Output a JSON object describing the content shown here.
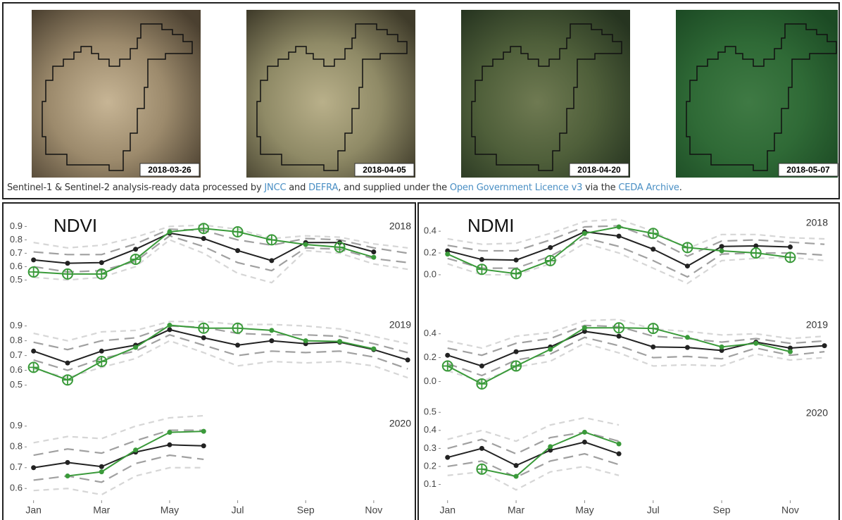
{
  "images": [
    {
      "date": "2018-03-26"
    },
    {
      "date": "2018-04-05"
    },
    {
      "date": "2018-04-20"
    },
    {
      "date": "2018-05-07"
    }
  ],
  "caption": {
    "parts": [
      "Sentinel-1 & Sentinel-2 analysis-ready data processed by ",
      "JNCC",
      " and ",
      "DEFRA",
      ", and supplied under the ",
      "Open Government Licence v3",
      " via the ",
      "CEDA Archive",
      "."
    ]
  },
  "chart_data": [
    {
      "type": "line",
      "title": "NDVI",
      "subtitle": "2018",
      "x": [
        1,
        2,
        3,
        4,
        5,
        6,
        7,
        8,
        9,
        10,
        11,
        12
      ],
      "xlim": [
        0.8,
        12.1
      ],
      "ylim": [
        0.46,
        0.96
      ],
      "yticks": [
        0.5,
        0.6,
        0.7,
        0.8,
        0.9
      ],
      "series": [
        {
          "color": "#d6d6d6",
          "dash": "8 6",
          "values": [
            0.78,
            0.74,
            0.76,
            0.82,
            0.9,
            0.91,
            0.88,
            0.81,
            0.83,
            0.82,
            0.77,
            0.74
          ]
        },
        {
          "color": "#d6d6d6",
          "dash": "8 6",
          "values": [
            0.52,
            0.5,
            0.52,
            0.6,
            0.8,
            0.7,
            0.55,
            0.48,
            0.72,
            0.7,
            0.62,
            0.58
          ]
        },
        {
          "color": "#a0a0a0",
          "dash": "14 8",
          "values": [
            0.71,
            0.69,
            0.69,
            0.77,
            0.88,
            0.87,
            0.8,
            0.76,
            0.81,
            0.8,
            0.74,
            0.7
          ]
        },
        {
          "color": "#a0a0a0",
          "dash": "14 8",
          "values": [
            0.6,
            0.56,
            0.57,
            0.64,
            0.83,
            0.75,
            0.63,
            0.57,
            0.74,
            0.73,
            0.66,
            0.63
          ]
        },
        {
          "color": "#222222",
          "marker": "dot",
          "values": [
            0.65,
            0.625,
            0.63,
            0.73,
            0.85,
            0.81,
            0.72,
            0.645,
            0.78,
            0.78,
            0.71,
            null
          ]
        },
        {
          "color": "#3a9a3a",
          "markers": [
            "circle-plus",
            "circle-plus",
            "circle-plus",
            "circle-plus",
            "dot",
            "circle-plus",
            "circle-plus",
            "circle-plus",
            "dot",
            "circle-plus",
            "dot",
            "dot"
          ],
          "values": [
            0.56,
            0.545,
            0.545,
            0.655,
            0.86,
            0.885,
            0.86,
            0.8,
            0.765,
            0.745,
            0.67,
            null
          ]
        }
      ]
    },
    {
      "type": "line",
      "subtitle": "2019",
      "x": [
        1,
        2,
        3,
        4,
        5,
        6,
        7,
        8,
        9,
        10,
        11,
        12
      ],
      "xlim": [
        0.8,
        12.1
      ],
      "ylim": [
        0.46,
        0.96
      ],
      "yticks": [
        0.5,
        0.6,
        0.7,
        0.8,
        0.9
      ],
      "series": [
        {
          "color": "#d6d6d6",
          "dash": "8 6",
          "values": [
            0.85,
            0.8,
            0.86,
            0.87,
            0.93,
            0.93,
            0.91,
            0.91,
            0.9,
            0.88,
            0.83,
            0.78
          ]
        },
        {
          "color": "#d6d6d6",
          "dash": "8 6",
          "values": [
            0.61,
            0.55,
            0.62,
            0.68,
            0.8,
            0.72,
            0.63,
            0.66,
            0.65,
            0.66,
            0.63,
            0.55
          ]
        },
        {
          "color": "#a0a0a0",
          "dash": "14 8",
          "values": [
            0.79,
            0.74,
            0.8,
            0.82,
            0.9,
            0.89,
            0.85,
            0.84,
            0.84,
            0.83,
            0.78,
            0.72
          ]
        },
        {
          "color": "#a0a0a0",
          "dash": "14 8",
          "values": [
            0.67,
            0.6,
            0.68,
            0.73,
            0.84,
            0.77,
            0.7,
            0.73,
            0.72,
            0.73,
            0.69,
            0.61
          ]
        },
        {
          "color": "#222222",
          "marker": "dot",
          "values": [
            0.73,
            0.65,
            0.73,
            0.77,
            0.875,
            0.82,
            0.77,
            0.8,
            0.78,
            0.79,
            0.74,
            0.67
          ]
        },
        {
          "color": "#3a9a3a",
          "markers": [
            "circle-plus",
            "circle-plus",
            "circle-plus",
            "dot",
            "dot",
            "circle-plus",
            "circle-plus",
            "dot",
            "dot",
            "dot",
            "dot",
            "dot"
          ],
          "values": [
            0.62,
            0.535,
            0.66,
            0.755,
            0.905,
            0.885,
            0.885,
            0.87,
            0.8,
            0.795,
            0.745,
            null
          ]
        }
      ]
    },
    {
      "type": "line",
      "subtitle": "2020",
      "x": [
        1,
        2,
        3,
        4,
        5,
        6
      ],
      "xlim": [
        0.8,
        12.1
      ],
      "ylim": [
        0.55,
        0.95
      ],
      "yticks": [
        0.6,
        0.7,
        0.8,
        0.9
      ],
      "xticks": [
        {
          "value": 1,
          "label": "Jan"
        },
        {
          "value": 3,
          "label": "Mar"
        },
        {
          "value": 5,
          "label": "May"
        },
        {
          "value": 7,
          "label": "Jul"
        },
        {
          "value": 9,
          "label": "Sep"
        },
        {
          "value": 11,
          "label": "Nov"
        }
      ],
      "series": [
        {
          "color": "#d6d6d6",
          "dash": "8 6",
          "values": [
            0.82,
            0.85,
            0.84,
            0.9,
            0.94,
            0.95
          ]
        },
        {
          "color": "#d6d6d6",
          "dash": "8 6",
          "values": [
            0.59,
            0.6,
            0.57,
            0.66,
            0.7,
            0.7
          ]
        },
        {
          "color": "#a0a0a0",
          "dash": "14 8",
          "values": [
            0.76,
            0.79,
            0.77,
            0.83,
            0.88,
            0.88
          ]
        },
        {
          "color": "#a0a0a0",
          "dash": "14 8",
          "values": [
            0.64,
            0.66,
            0.63,
            0.72,
            0.76,
            0.74
          ]
        },
        {
          "color": "#222222",
          "marker": "dot",
          "values": [
            0.7,
            0.725,
            0.705,
            0.775,
            0.81,
            0.805
          ]
        },
        {
          "color": "#3a9a3a",
          "markers": [
            "dot",
            "dot",
            "dot",
            "dot",
            "dot",
            "dot"
          ],
          "values": [
            null,
            0.66,
            0.68,
            0.785,
            0.87,
            0.875
          ]
        }
      ]
    },
    {
      "type": "line",
      "title": "NDMI",
      "subtitle": "2018",
      "x": [
        1,
        2,
        3,
        4,
        5,
        6,
        7,
        8,
        9,
        10,
        11,
        12
      ],
      "xlim": [
        0.8,
        12.1
      ],
      "ylim": [
        -0.13,
        0.55
      ],
      "yticks": [
        {
          "value": 0,
          "label": "0.0"
        },
        0.2,
        0.4
      ],
      "series": [
        {
          "color": "#d6d6d6",
          "dash": "8 6",
          "values": [
            0.33,
            0.28,
            0.29,
            0.38,
            0.49,
            0.51,
            0.4,
            0.24,
            0.37,
            0.37,
            0.34,
            0.33
          ]
        },
        {
          "color": "#d6d6d6",
          "dash": "8 6",
          "values": [
            0.1,
            0.0,
            0.0,
            0.1,
            0.29,
            0.2,
            0.06,
            -0.08,
            0.13,
            0.15,
            0.16,
            0.13
          ]
        },
        {
          "color": "#a0a0a0",
          "dash": "14 8",
          "values": [
            0.27,
            0.22,
            0.22,
            0.32,
            0.44,
            0.45,
            0.33,
            0.17,
            0.31,
            0.32,
            0.3,
            0.28
          ]
        },
        {
          "color": "#a0a0a0",
          "dash": "14 8",
          "values": [
            0.15,
            0.06,
            0.06,
            0.17,
            0.34,
            0.26,
            0.13,
            -0.02,
            0.19,
            0.2,
            0.2,
            0.18
          ]
        },
        {
          "color": "#222222",
          "marker": "dot",
          "values": [
            0.22,
            0.14,
            0.135,
            0.25,
            0.395,
            0.355,
            0.235,
            0.08,
            0.26,
            0.265,
            0.255,
            null
          ]
        },
        {
          "color": "#3a9a3a",
          "markers": [
            "dot",
            "circle-plus",
            "circle-plus",
            "circle-plus",
            "dot",
            "dot",
            "circle-plus",
            "circle-plus",
            "dot",
            "circle-plus",
            "circle-plus",
            "dot"
          ],
          "values": [
            0.19,
            0.05,
            0.01,
            0.13,
            0.38,
            0.44,
            0.38,
            0.25,
            0.22,
            0.2,
            0.16,
            null
          ]
        }
      ]
    },
    {
      "type": "line",
      "subtitle": "2019",
      "x": [
        1,
        2,
        3,
        4,
        5,
        6,
        7,
        8,
        9,
        10,
        11,
        12
      ],
      "xlim": [
        0.8,
        12.1
      ],
      "ylim": [
        -0.08,
        0.54
      ],
      "yticks": [
        {
          "value": 0,
          "label": "0.0"
        },
        0.2,
        0.4
      ],
      "series": [
        {
          "color": "#d6d6d6",
          "dash": "8 6",
          "values": [
            0.34,
            0.28,
            0.38,
            0.41,
            0.51,
            0.52,
            0.44,
            0.42,
            0.39,
            0.4,
            0.36,
            0.38
          ]
        },
        {
          "color": "#d6d6d6",
          "dash": "8 6",
          "values": [
            0.09,
            0.0,
            0.12,
            0.17,
            0.32,
            0.24,
            0.13,
            0.14,
            0.13,
            0.23,
            0.18,
            0.2
          ]
        },
        {
          "color": "#a0a0a0",
          "dash": "14 8",
          "values": [
            0.28,
            0.22,
            0.32,
            0.36,
            0.47,
            0.46,
            0.38,
            0.36,
            0.33,
            0.36,
            0.32,
            0.34
          ]
        },
        {
          "color": "#a0a0a0",
          "dash": "14 8",
          "values": [
            0.15,
            0.05,
            0.18,
            0.23,
            0.37,
            0.3,
            0.2,
            0.21,
            0.19,
            0.28,
            0.22,
            0.25
          ]
        },
        {
          "color": "#222222",
          "marker": "dot",
          "values": [
            0.22,
            0.13,
            0.25,
            0.29,
            0.42,
            0.38,
            0.29,
            0.285,
            0.26,
            0.33,
            0.28,
            0.3
          ]
        },
        {
          "color": "#3a9a3a",
          "markers": [
            "circle-plus",
            "circle-plus",
            "circle-plus",
            "dot",
            "dot",
            "circle-plus",
            "circle-plus",
            "dot",
            "dot",
            "dot",
            "dot",
            "dot"
          ],
          "values": [
            0.13,
            -0.02,
            0.13,
            0.27,
            0.45,
            0.45,
            0.445,
            0.37,
            0.29,
            0.32,
            0.25,
            null
          ]
        }
      ]
    },
    {
      "type": "line",
      "subtitle": "2020",
      "x": [
        1,
        2,
        3,
        4,
        5,
        6
      ],
      "xlim": [
        0.8,
        12.1
      ],
      "ylim": [
        0.02,
        0.54
      ],
      "yticks": [
        0.1,
        0.2,
        0.3,
        0.4,
        0.5
      ],
      "xticks": [
        {
          "value": 1,
          "label": "Jan"
        },
        {
          "value": 3,
          "label": "Mar"
        },
        {
          "value": 5,
          "label": "May"
        },
        {
          "value": 7,
          "label": "Jul"
        },
        {
          "value": 9,
          "label": "Sep"
        },
        {
          "value": 11,
          "label": "Nov"
        }
      ],
      "series": [
        {
          "color": "#d6d6d6",
          "dash": "8 6",
          "values": [
            0.35,
            0.4,
            0.34,
            0.43,
            0.47,
            0.43
          ]
        },
        {
          "color": "#d6d6d6",
          "dash": "8 6",
          "values": [
            0.15,
            0.17,
            0.07,
            0.17,
            0.2,
            0.15
          ]
        },
        {
          "color": "#a0a0a0",
          "dash": "14 8",
          "values": [
            0.3,
            0.35,
            0.27,
            0.36,
            0.39,
            0.34
          ]
        },
        {
          "color": "#a0a0a0",
          "dash": "14 8",
          "values": [
            0.2,
            0.23,
            0.14,
            0.23,
            0.27,
            0.21
          ]
        },
        {
          "color": "#222222",
          "marker": "dot",
          "values": [
            0.25,
            0.3,
            0.205,
            0.29,
            0.335,
            0.27
          ]
        },
        {
          "color": "#3a9a3a",
          "markers": [
            "dot",
            "circle-plus",
            "dot",
            "dot",
            "dot",
            "dot"
          ],
          "values": [
            null,
            0.185,
            0.145,
            0.31,
            0.39,
            0.325
          ]
        }
      ]
    }
  ]
}
